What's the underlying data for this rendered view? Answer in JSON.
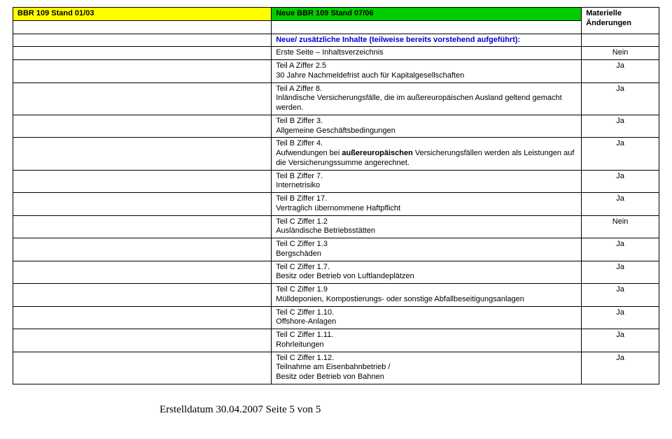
{
  "header": {
    "left": "BBR 109 Stand 01/03",
    "mid": "Neue BBR 109 Stand 07/06",
    "rightLine1": "Materielle",
    "rightLine2": "Änderungen"
  },
  "intro": "Neue/ zusätzliche Inhalte (teilweise bereits vorstehend aufgeführt):",
  "rows": [
    {
      "c2a": "Erste Seite – Inhaltsverzeichnis",
      "c2b": "",
      "c3": "Nein"
    },
    {
      "c2a": "Teil A Ziffer 2.5",
      "c2b": "30 Jahre Nachmeldefrist auch für Kapitalgesellschaften",
      "c3": "Ja"
    },
    {
      "c2a": "Teil A Ziffer 8.",
      "c2b": "Inländische Versicherungsfälle, die im außereuropäischen Ausland geltend gemacht werden.",
      "c3": "Ja"
    },
    {
      "c2a": "Teil B Ziffer 3.",
      "c2b": "Allgemeine Geschäftsbedingungen",
      "c3": "Ja"
    },
    {
      "c2a": "Teil B Ziffer 4.",
      "c2b_html": "Aufwendungen bei <b>außereuropäischen</b> Versicherungsfällen werden als Leistungen auf die Versicherungssumme angerechnet.",
      "c3": "Ja"
    },
    {
      "c2a": "Teil B Ziffer 7.",
      "c2b": "Internetrisiko",
      "c3": "Ja"
    },
    {
      "c2a": "Teil B Ziffer 17.",
      "c2b": "Vertraglich übernommene Haftpflicht",
      "c3": "Ja"
    },
    {
      "c2a": "Teil C Ziffer 1.2",
      "c2b": "Ausländische Betriebsstätten",
      "c3": "Nein"
    },
    {
      "c2a": "Teil C Ziffer 1.3",
      "c2b": "Bergschäden",
      "c3": "Ja"
    },
    {
      "c2a": "Teil C Ziffer 1.7.",
      "c2b": "Besitz oder Betrieb von Luftlandeplätzen",
      "c3": "Ja"
    },
    {
      "c2a": "Teil C Ziffer 1.9",
      "c2b": "Mülldeponien, Kompostierungs- oder sonstige Abfallbeseitigungsanlagen",
      "c3": "Ja"
    },
    {
      "c2a": "Teil C Ziffer 1.10.",
      "c2b": "Offshore-Anlagen",
      "c3": "Ja"
    },
    {
      "c2a": "Teil C Ziffer 1.11.",
      "c2b": "Rohrleitungen",
      "c3": "Ja"
    },
    {
      "c2a": "Teil C Ziffer 1.12.",
      "c2b": "Teilnahme am Eisenbahnbetrieb /\nBesitz oder Betrieb von Bahnen",
      "c3": "Ja"
    }
  ],
  "footer": "Erstelldatum 30.04.2007   Seite 5 von 5"
}
